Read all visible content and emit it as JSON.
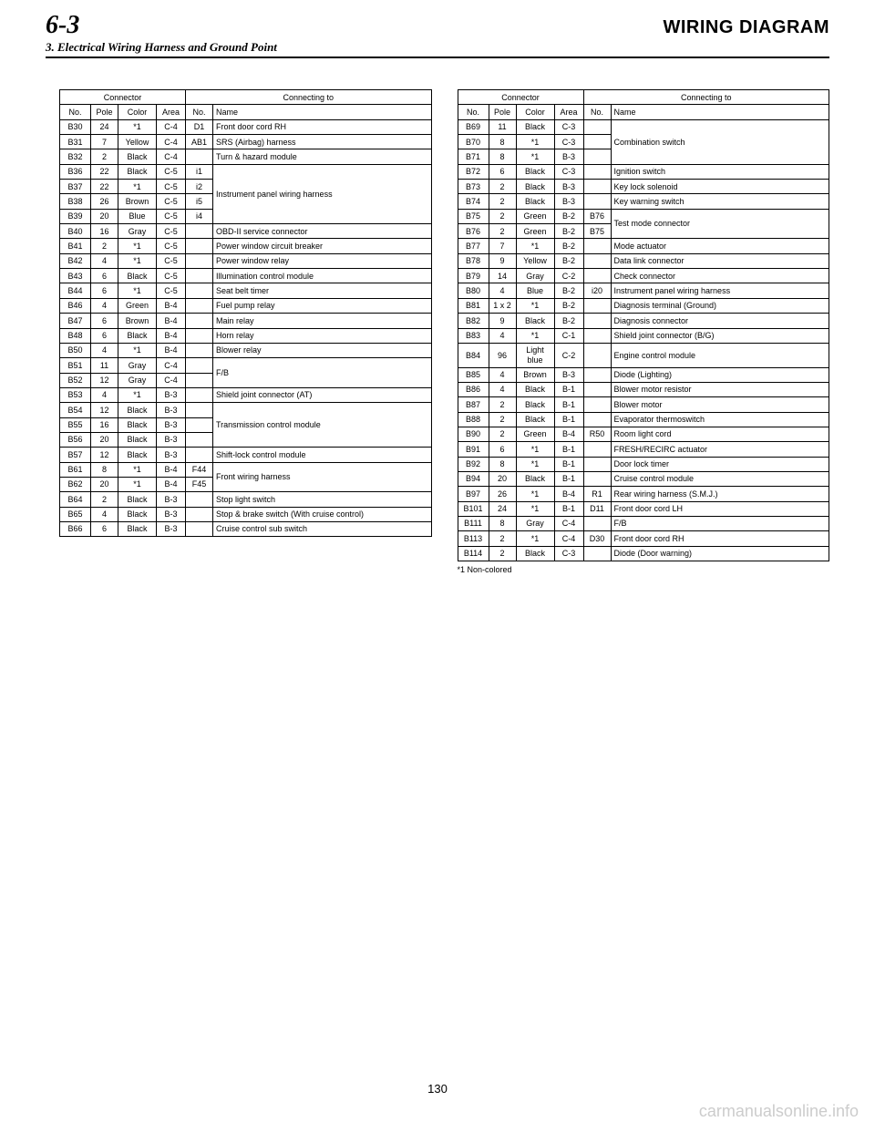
{
  "header": {
    "section_number": "6-3",
    "main_title": "WIRING DIAGRAM",
    "sub_title": "3. Electrical Wiring Harness and Ground Point"
  },
  "table_headers": {
    "connector": "Connector",
    "connecting_to": "Connecting to",
    "no": "No.",
    "pole": "Pole",
    "color": "Color",
    "area": "Area",
    "cno": "No.",
    "name": "Name"
  },
  "left_rows": [
    {
      "no": "B30",
      "pole": "24",
      "color": "*1",
      "area": "C-4",
      "cno": "D1",
      "name": "Front door cord RH",
      "rowspan": 1
    },
    {
      "no": "B31",
      "pole": "7",
      "color": "Yellow",
      "area": "C-4",
      "cno": "AB1",
      "name": "SRS (Airbag) harness",
      "rowspan": 1
    },
    {
      "no": "B32",
      "pole": "2",
      "color": "Black",
      "area": "C-4",
      "cno": "",
      "name": "Turn & hazard module",
      "rowspan": 1
    },
    {
      "no": "B36",
      "pole": "22",
      "color": "Black",
      "area": "C-5",
      "cno": "i1",
      "name": "Instrument panel wiring harness",
      "rowspan": 4
    },
    {
      "no": "B37",
      "pole": "22",
      "color": "*1",
      "area": "C-5",
      "cno": "i2",
      "name": "",
      "rowspan": 0
    },
    {
      "no": "B38",
      "pole": "26",
      "color": "Brown",
      "area": "C-5",
      "cno": "i5",
      "name": "",
      "rowspan": 0
    },
    {
      "no": "B39",
      "pole": "20",
      "color": "Blue",
      "area": "C-5",
      "cno": "i4",
      "name": "",
      "rowspan": 0
    },
    {
      "no": "B40",
      "pole": "16",
      "color": "Gray",
      "area": "C-5",
      "cno": "",
      "name": "OBD-II service connector",
      "rowspan": 1
    },
    {
      "no": "B41",
      "pole": "2",
      "color": "*1",
      "area": "C-5",
      "cno": "",
      "name": "Power window circuit breaker",
      "rowspan": 1
    },
    {
      "no": "B42",
      "pole": "4",
      "color": "*1",
      "area": "C-5",
      "cno": "",
      "name": "Power window relay",
      "rowspan": 1
    },
    {
      "no": "B43",
      "pole": "6",
      "color": "Black",
      "area": "C-5",
      "cno": "",
      "name": "Illumination control module",
      "rowspan": 1
    },
    {
      "no": "B44",
      "pole": "6",
      "color": "*1",
      "area": "C-5",
      "cno": "",
      "name": "Seat belt timer",
      "rowspan": 1
    },
    {
      "no": "B46",
      "pole": "4",
      "color": "Green",
      "area": "B-4",
      "cno": "",
      "name": "Fuel pump relay",
      "rowspan": 1
    },
    {
      "no": "B47",
      "pole": "6",
      "color": "Brown",
      "area": "B-4",
      "cno": "",
      "name": "Main relay",
      "rowspan": 1
    },
    {
      "no": "B48",
      "pole": "6",
      "color": "Black",
      "area": "B-4",
      "cno": "",
      "name": "Horn relay",
      "rowspan": 1
    },
    {
      "no": "B50",
      "pole": "4",
      "color": "*1",
      "area": "B-4",
      "cno": "",
      "name": "Blower relay",
      "rowspan": 1
    },
    {
      "no": "B51",
      "pole": "11",
      "color": "Gray",
      "area": "C-4",
      "cno": "",
      "name": "F/B",
      "rowspan": 2
    },
    {
      "no": "B52",
      "pole": "12",
      "color": "Gray",
      "area": "C-4",
      "cno": "",
      "name": "",
      "rowspan": 0
    },
    {
      "no": "B53",
      "pole": "4",
      "color": "*1",
      "area": "B-3",
      "cno": "",
      "name": "Shield joint connector (AT)",
      "rowspan": 1
    },
    {
      "no": "B54",
      "pole": "12",
      "color": "Black",
      "area": "B-3",
      "cno": "",
      "name": "Transmission control module",
      "rowspan": 3
    },
    {
      "no": "B55",
      "pole": "16",
      "color": "Black",
      "area": "B-3",
      "cno": "",
      "name": "",
      "rowspan": 0
    },
    {
      "no": "B56",
      "pole": "20",
      "color": "Black",
      "area": "B-3",
      "cno": "",
      "name": "",
      "rowspan": 0
    },
    {
      "no": "B57",
      "pole": "12",
      "color": "Black",
      "area": "B-3",
      "cno": "",
      "name": "Shift-lock control module",
      "rowspan": 1
    },
    {
      "no": "B61",
      "pole": "8",
      "color": "*1",
      "area": "B-4",
      "cno": "F44",
      "name": "Front wiring harness",
      "rowspan": 2
    },
    {
      "no": "B62",
      "pole": "20",
      "color": "*1",
      "area": "B-4",
      "cno": "F45",
      "name": "",
      "rowspan": 0
    },
    {
      "no": "B64",
      "pole": "2",
      "color": "Black",
      "area": "B-3",
      "cno": "",
      "name": "Stop light switch",
      "rowspan": 1
    },
    {
      "no": "B65",
      "pole": "4",
      "color": "Black",
      "area": "B-3",
      "cno": "",
      "name": "Stop & brake switch (With cruise control)",
      "rowspan": 1
    },
    {
      "no": "B66",
      "pole": "6",
      "color": "Black",
      "area": "B-3",
      "cno": "",
      "name": "Cruise control sub switch",
      "rowspan": 1
    }
  ],
  "right_rows": [
    {
      "no": "B69",
      "pole": "11",
      "color": "Black",
      "area": "C-3",
      "cno": "",
      "name": "Combination switch",
      "rowspan": 3
    },
    {
      "no": "B70",
      "pole": "8",
      "color": "*1",
      "area": "C-3",
      "cno": "",
      "name": "",
      "rowspan": 0
    },
    {
      "no": "B71",
      "pole": "8",
      "color": "*1",
      "area": "B-3",
      "cno": "",
      "name": "",
      "rowspan": 0
    },
    {
      "no": "B72",
      "pole": "6",
      "color": "Black",
      "area": "C-3",
      "cno": "",
      "name": "Ignition switch",
      "rowspan": 1
    },
    {
      "no": "B73",
      "pole": "2",
      "color": "Black",
      "area": "B-3",
      "cno": "",
      "name": "Key lock solenoid",
      "rowspan": 1
    },
    {
      "no": "B74",
      "pole": "2",
      "color": "Black",
      "area": "B-3",
      "cno": "",
      "name": "Key warning switch",
      "rowspan": 1
    },
    {
      "no": "B75",
      "pole": "2",
      "color": "Green",
      "area": "B-2",
      "cno": "B76",
      "name": "Test mode connector",
      "rowspan": 2
    },
    {
      "no": "B76",
      "pole": "2",
      "color": "Green",
      "area": "B-2",
      "cno": "B75",
      "name": "",
      "rowspan": 0
    },
    {
      "no": "B77",
      "pole": "7",
      "color": "*1",
      "area": "B-2",
      "cno": "",
      "name": "Mode actuator",
      "rowspan": 1
    },
    {
      "no": "B78",
      "pole": "9",
      "color": "Yellow",
      "area": "B-2",
      "cno": "",
      "name": "Data link connector",
      "rowspan": 1
    },
    {
      "no": "B79",
      "pole": "14",
      "color": "Gray",
      "area": "C-2",
      "cno": "",
      "name": "Check connector",
      "rowspan": 1
    },
    {
      "no": "B80",
      "pole": "4",
      "color": "Blue",
      "area": "B-2",
      "cno": "i20",
      "name": "Instrument panel wiring harness",
      "rowspan": 1
    },
    {
      "no": "B81",
      "pole": "1 x 2",
      "color": "*1",
      "area": "B-2",
      "cno": "",
      "name": "Diagnosis terminal (Ground)",
      "rowspan": 1
    },
    {
      "no": "B82",
      "pole": "9",
      "color": "Black",
      "area": "B-2",
      "cno": "",
      "name": "Diagnosis connector",
      "rowspan": 1
    },
    {
      "no": "B83",
      "pole": "4",
      "color": "*1",
      "area": "C-1",
      "cno": "",
      "name": "Shield joint connector (B/G)",
      "rowspan": 1
    },
    {
      "no": "B84",
      "pole": "96",
      "color": "Light blue",
      "area": "C-2",
      "cno": "",
      "name": "Engine control module",
      "rowspan": 1
    },
    {
      "no": "B85",
      "pole": "4",
      "color": "Brown",
      "area": "B-3",
      "cno": "",
      "name": "Diode (Lighting)",
      "rowspan": 1
    },
    {
      "no": "B86",
      "pole": "4",
      "color": "Black",
      "area": "B-1",
      "cno": "",
      "name": "Blower motor resistor",
      "rowspan": 1
    },
    {
      "no": "B87",
      "pole": "2",
      "color": "Black",
      "area": "B-1",
      "cno": "",
      "name": "Blower motor",
      "rowspan": 1
    },
    {
      "no": "B88",
      "pole": "2",
      "color": "Black",
      "area": "B-1",
      "cno": "",
      "name": "Evaporator thermoswitch",
      "rowspan": 1
    },
    {
      "no": "B90",
      "pole": "2",
      "color": "Green",
      "area": "B-4",
      "cno": "R50",
      "name": "Room light cord",
      "rowspan": 1
    },
    {
      "no": "B91",
      "pole": "6",
      "color": "*1",
      "area": "B-1",
      "cno": "",
      "name": "FRESH/RECIRC actuator",
      "rowspan": 1
    },
    {
      "no": "B92",
      "pole": "8",
      "color": "*1",
      "area": "B-1",
      "cno": "",
      "name": "Door lock timer",
      "rowspan": 1
    },
    {
      "no": "B94",
      "pole": "20",
      "color": "Black",
      "area": "B-1",
      "cno": "",
      "name": "Cruise control module",
      "rowspan": 1
    },
    {
      "no": "B97",
      "pole": "26",
      "color": "*1",
      "area": "B-4",
      "cno": "R1",
      "name": "Rear wiring harness (S.M.J.)",
      "rowspan": 1
    },
    {
      "no": "B101",
      "pole": "24",
      "color": "*1",
      "area": "B-1",
      "cno": "D11",
      "name": "Front door cord LH",
      "rowspan": 1
    },
    {
      "no": "B111",
      "pole": "8",
      "color": "Gray",
      "area": "C-4",
      "cno": "",
      "name": "F/B",
      "rowspan": 1
    },
    {
      "no": "B113",
      "pole": "2",
      "color": "*1",
      "area": "C-4",
      "cno": "D30",
      "name": "Front door cord RH",
      "rowspan": 1
    },
    {
      "no": "B114",
      "pole": "2",
      "color": "Black",
      "area": "C-3",
      "cno": "",
      "name": "Diode (Door warning)",
      "rowspan": 1
    }
  ],
  "footnote": "*1 Non-colored",
  "page_number": "130",
  "watermark": "carmanualsonline.info"
}
